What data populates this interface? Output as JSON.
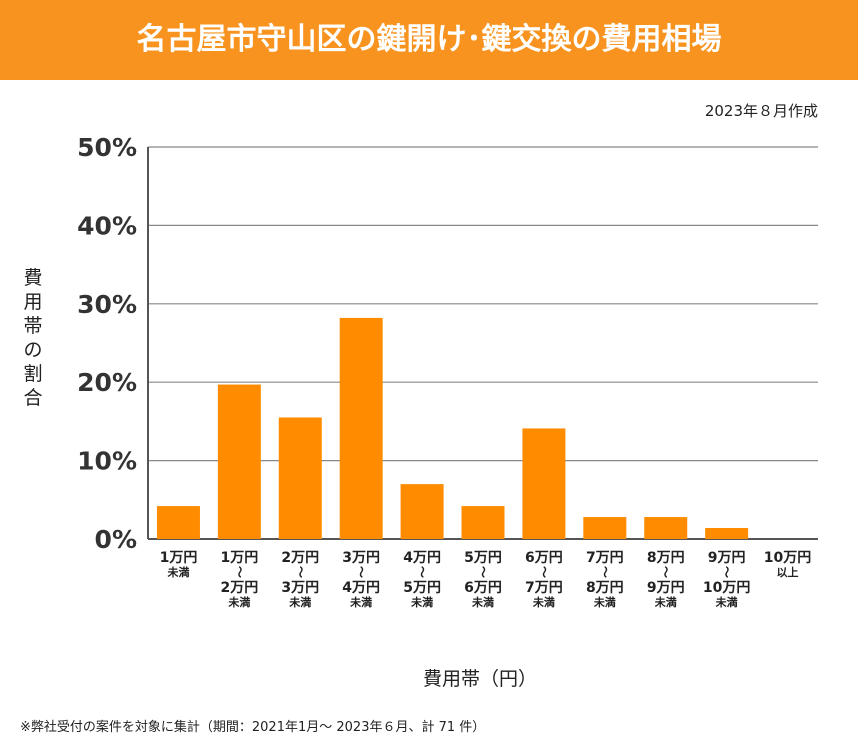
{
  "header": {
    "title": "名古屋市守山区の鍵開け･鍵交換の費用相場"
  },
  "date": "2023年８月作成",
  "note": "※弊社受付の案件を対象に集計（期間：2021年1月～ 2023年６月、計 71 件）",
  "colors": {
    "bar": "#ff8c00",
    "header": "#f7931e"
  },
  "chart_data": {
    "type": "bar",
    "ylabel": "費用帯の割合",
    "xlabel": "費用帯（円）",
    "ylim": [
      0,
      50
    ],
    "yticks": [
      "0%",
      "10%",
      "20%",
      "30%",
      "40%",
      "50%"
    ],
    "grid": true,
    "categories": [
      [
        "1万円",
        "未満"
      ],
      [
        "1万円",
        "～",
        "2万円",
        "未満"
      ],
      [
        "2万円",
        "～",
        "3万円",
        "未満"
      ],
      [
        "3万円",
        "～",
        "4万円",
        "未満"
      ],
      [
        "4万円",
        "～",
        "5万円",
        "未満"
      ],
      [
        "5万円",
        "～",
        "6万円",
        "未満"
      ],
      [
        "6万円",
        "～",
        "7万円",
        "未満"
      ],
      [
        "7万円",
        "～",
        "8万円",
        "未満"
      ],
      [
        "8万円",
        "～",
        "9万円",
        "未満"
      ],
      [
        "9万円",
        "～",
        "10万円",
        "未満"
      ],
      [
        "10万円",
        "以上"
      ]
    ],
    "values": [
      4.2,
      19.7,
      15.5,
      28.2,
      7.0,
      4.2,
      14.1,
      2.8,
      2.8,
      1.4,
      0
    ]
  }
}
